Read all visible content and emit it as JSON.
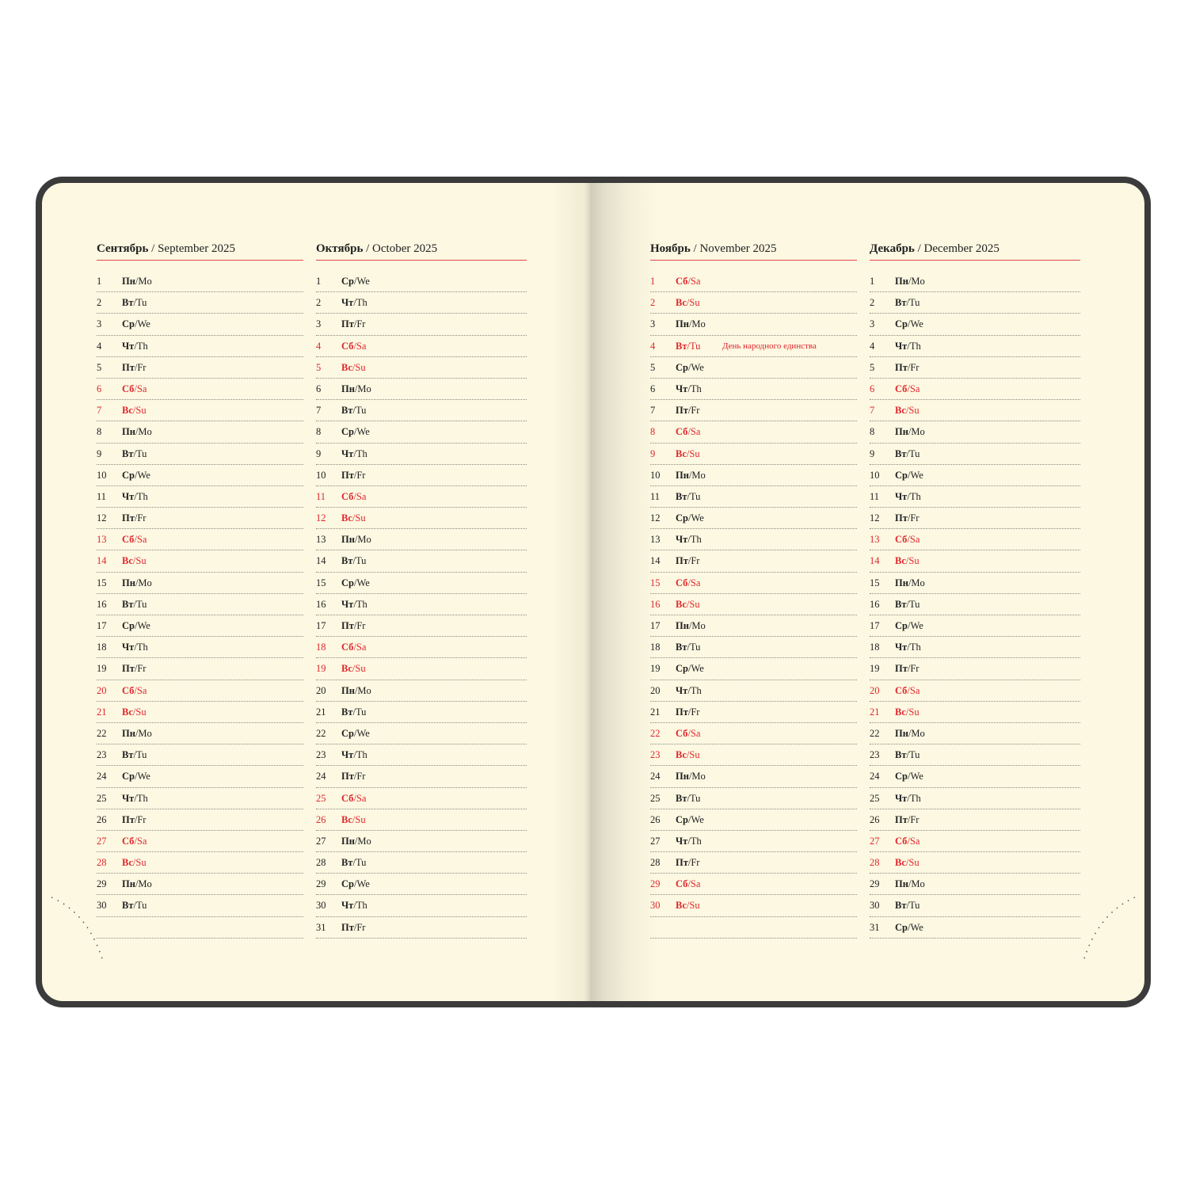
{
  "accent_color": "#e0262d",
  "separator": "/",
  "months": [
    {
      "ru": "Сентябрь",
      "slash": "/",
      "en": "September 2025",
      "days": [
        {
          "d": "1",
          "ru": "Пн",
          "en": "Mo"
        },
        {
          "d": "2",
          "ru": "Вт",
          "en": "Tu"
        },
        {
          "d": "3",
          "ru": "Ср",
          "en": "We"
        },
        {
          "d": "4",
          "ru": "Чт",
          "en": "Th"
        },
        {
          "d": "5",
          "ru": "Пт",
          "en": "Fr"
        },
        {
          "d": "6",
          "ru": "Сб",
          "en": "Sa",
          "red": true
        },
        {
          "d": "7",
          "ru": "Вс",
          "en": "Su",
          "red": true
        },
        {
          "d": "8",
          "ru": "Пн",
          "en": "Mo"
        },
        {
          "d": "9",
          "ru": "Вт",
          "en": "Tu"
        },
        {
          "d": "10",
          "ru": "Ср",
          "en": "We"
        },
        {
          "d": "11",
          "ru": "Чт",
          "en": "Th"
        },
        {
          "d": "12",
          "ru": "Пт",
          "en": "Fr"
        },
        {
          "d": "13",
          "ru": "Сб",
          "en": "Sa",
          "red": true
        },
        {
          "d": "14",
          "ru": "Вс",
          "en": "Su",
          "red": true
        },
        {
          "d": "15",
          "ru": "Пн",
          "en": "Mo"
        },
        {
          "d": "16",
          "ru": "Вт",
          "en": "Tu"
        },
        {
          "d": "17",
          "ru": "Ср",
          "en": "We"
        },
        {
          "d": "18",
          "ru": "Чт",
          "en": "Th"
        },
        {
          "d": "19",
          "ru": "Пт",
          "en": "Fr"
        },
        {
          "d": "20",
          "ru": "Сб",
          "en": "Sa",
          "red": true
        },
        {
          "d": "21",
          "ru": "Вс",
          "en": "Su",
          "red": true
        },
        {
          "d": "22",
          "ru": "Пн",
          "en": "Mo"
        },
        {
          "d": "23",
          "ru": "Вт",
          "en": "Tu"
        },
        {
          "d": "24",
          "ru": "Ср",
          "en": "We"
        },
        {
          "d": "25",
          "ru": "Чт",
          "en": "Th"
        },
        {
          "d": "26",
          "ru": "Пт",
          "en": "Fr"
        },
        {
          "d": "27",
          "ru": "Сб",
          "en": "Sa",
          "red": true
        },
        {
          "d": "28",
          "ru": "Вс",
          "en": "Su",
          "red": true
        },
        {
          "d": "29",
          "ru": "Пн",
          "en": "Mo"
        },
        {
          "d": "30",
          "ru": "Вт",
          "en": "Tu"
        }
      ]
    },
    {
      "ru": "Октябрь",
      "slash": "/",
      "en": "October 2025",
      "days": [
        {
          "d": "1",
          "ru": "Ср",
          "en": "We"
        },
        {
          "d": "2",
          "ru": "Чт",
          "en": "Th"
        },
        {
          "d": "3",
          "ru": "Пт",
          "en": "Fr"
        },
        {
          "d": "4",
          "ru": "Сб",
          "en": "Sa",
          "red": true
        },
        {
          "d": "5",
          "ru": "Вс",
          "en": "Su",
          "red": true
        },
        {
          "d": "6",
          "ru": "Пн",
          "en": "Mo"
        },
        {
          "d": "7",
          "ru": "Вт",
          "en": "Tu"
        },
        {
          "d": "8",
          "ru": "Ср",
          "en": "We"
        },
        {
          "d": "9",
          "ru": "Чт",
          "en": "Th"
        },
        {
          "d": "10",
          "ru": "Пт",
          "en": "Fr"
        },
        {
          "d": "11",
          "ru": "Сб",
          "en": "Sa",
          "red": true
        },
        {
          "d": "12",
          "ru": "Вс",
          "en": "Su",
          "red": true
        },
        {
          "d": "13",
          "ru": "Пн",
          "en": "Mo"
        },
        {
          "d": "14",
          "ru": "Вт",
          "en": "Tu"
        },
        {
          "d": "15",
          "ru": "Ср",
          "en": "We"
        },
        {
          "d": "16",
          "ru": "Чт",
          "en": "Th"
        },
        {
          "d": "17",
          "ru": "Пт",
          "en": "Fr"
        },
        {
          "d": "18",
          "ru": "Сб",
          "en": "Sa",
          "red": true
        },
        {
          "d": "19",
          "ru": "Вс",
          "en": "Su",
          "red": true
        },
        {
          "d": "20",
          "ru": "Пн",
          "en": "Mo"
        },
        {
          "d": "21",
          "ru": "Вт",
          "en": "Tu"
        },
        {
          "d": "22",
          "ru": "Ср",
          "en": "We"
        },
        {
          "d": "23",
          "ru": "Чт",
          "en": "Th"
        },
        {
          "d": "24",
          "ru": "Пт",
          "en": "Fr"
        },
        {
          "d": "25",
          "ru": "Сб",
          "en": "Sa",
          "red": true
        },
        {
          "d": "26",
          "ru": "Вс",
          "en": "Su",
          "red": true
        },
        {
          "d": "27",
          "ru": "Пн",
          "en": "Mo"
        },
        {
          "d": "28",
          "ru": "Вт",
          "en": "Tu"
        },
        {
          "d": "29",
          "ru": "Ср",
          "en": "We"
        },
        {
          "d": "30",
          "ru": "Чт",
          "en": "Th"
        },
        {
          "d": "31",
          "ru": "Пт",
          "en": "Fr"
        }
      ]
    },
    {
      "ru": "Ноябрь",
      "slash": "/",
      "en": "November 2025",
      "days": [
        {
          "d": "1",
          "ru": "Сб",
          "en": "Sa",
          "red": true
        },
        {
          "d": "2",
          "ru": "Вс",
          "en": "Su",
          "red": true
        },
        {
          "d": "3",
          "ru": "Пн",
          "en": "Mo"
        },
        {
          "d": "4",
          "ru": "Вт",
          "en": "Tu",
          "red": true,
          "note": "День народного единства"
        },
        {
          "d": "5",
          "ru": "Ср",
          "en": "We"
        },
        {
          "d": "6",
          "ru": "Чт",
          "en": "Th"
        },
        {
          "d": "7",
          "ru": "Пт",
          "en": "Fr"
        },
        {
          "d": "8",
          "ru": "Сб",
          "en": "Sa",
          "red": true
        },
        {
          "d": "9",
          "ru": "Вс",
          "en": "Su",
          "red": true
        },
        {
          "d": "10",
          "ru": "Пн",
          "en": "Mo"
        },
        {
          "d": "11",
          "ru": "Вт",
          "en": "Tu"
        },
        {
          "d": "12",
          "ru": "Ср",
          "en": "We"
        },
        {
          "d": "13",
          "ru": "Чт",
          "en": "Th"
        },
        {
          "d": "14",
          "ru": "Пт",
          "en": "Fr"
        },
        {
          "d": "15",
          "ru": "Сб",
          "en": "Sa",
          "red": true
        },
        {
          "d": "16",
          "ru": "Вс",
          "en": "Su",
          "red": true
        },
        {
          "d": "17",
          "ru": "Пн",
          "en": "Mo"
        },
        {
          "d": "18",
          "ru": "Вт",
          "en": "Tu"
        },
        {
          "d": "19",
          "ru": "Ср",
          "en": "We"
        },
        {
          "d": "20",
          "ru": "Чт",
          "en": "Th"
        },
        {
          "d": "21",
          "ru": "Пт",
          "en": "Fr"
        },
        {
          "d": "22",
          "ru": "Сб",
          "en": "Sa",
          "red": true
        },
        {
          "d": "23",
          "ru": "Вс",
          "en": "Su",
          "red": true
        },
        {
          "d": "24",
          "ru": "Пн",
          "en": "Mo"
        },
        {
          "d": "25",
          "ru": "Вт",
          "en": "Tu"
        },
        {
          "d": "26",
          "ru": "Ср",
          "en": "We"
        },
        {
          "d": "27",
          "ru": "Чт",
          "en": "Th"
        },
        {
          "d": "28",
          "ru": "Пт",
          "en": "Fr"
        },
        {
          "d": "29",
          "ru": "Сб",
          "en": "Sa",
          "red": true
        },
        {
          "d": "30",
          "ru": "Вс",
          "en": "Su",
          "red": true
        }
      ]
    },
    {
      "ru": "Декабрь",
      "slash": "/",
      "en": "December 2025",
      "days": [
        {
          "d": "1",
          "ru": "Пн",
          "en": "Mo"
        },
        {
          "d": "2",
          "ru": "Вт",
          "en": "Tu"
        },
        {
          "d": "3",
          "ru": "Ср",
          "en": "We"
        },
        {
          "d": "4",
          "ru": "Чт",
          "en": "Th"
        },
        {
          "d": "5",
          "ru": "Пт",
          "en": "Fr"
        },
        {
          "d": "6",
          "ru": "Сб",
          "en": "Sa",
          "red": true
        },
        {
          "d": "7",
          "ru": "Вс",
          "en": "Su",
          "red": true
        },
        {
          "d": "8",
          "ru": "Пн",
          "en": "Mo"
        },
        {
          "d": "9",
          "ru": "Вт",
          "en": "Tu"
        },
        {
          "d": "10",
          "ru": "Ср",
          "en": "We"
        },
        {
          "d": "11",
          "ru": "Чт",
          "en": "Th"
        },
        {
          "d": "12",
          "ru": "Пт",
          "en": "Fr"
        },
        {
          "d": "13",
          "ru": "Сб",
          "en": "Sa",
          "red": true
        },
        {
          "d": "14",
          "ru": "Вс",
          "en": "Su",
          "red": true
        },
        {
          "d": "15",
          "ru": "Пн",
          "en": "Mo"
        },
        {
          "d": "16",
          "ru": "Вт",
          "en": "Tu"
        },
        {
          "d": "17",
          "ru": "Ср",
          "en": "We"
        },
        {
          "d": "18",
          "ru": "Чт",
          "en": "Th"
        },
        {
          "d": "19",
          "ru": "Пт",
          "en": "Fr"
        },
        {
          "d": "20",
          "ru": "Сб",
          "en": "Sa",
          "red": true
        },
        {
          "d": "21",
          "ru": "Вс",
          "en": "Su",
          "red": true
        },
        {
          "d": "22",
          "ru": "Пн",
          "en": "Mo"
        },
        {
          "d": "23",
          "ru": "Вт",
          "en": "Tu"
        },
        {
          "d": "24",
          "ru": "Ср",
          "en": "We"
        },
        {
          "d": "25",
          "ru": "Чт",
          "en": "Th"
        },
        {
          "d": "26",
          "ru": "Пт",
          "en": "Fr"
        },
        {
          "d": "27",
          "ru": "Сб",
          "en": "Sa",
          "red": true
        },
        {
          "d": "28",
          "ru": "Вс",
          "en": "Su",
          "red": true
        },
        {
          "d": "29",
          "ru": "Пн",
          "en": "Mo"
        },
        {
          "d": "30",
          "ru": "Вт",
          "en": "Tu"
        },
        {
          "d": "31",
          "ru": "Ср",
          "en": "We"
        }
      ]
    }
  ]
}
